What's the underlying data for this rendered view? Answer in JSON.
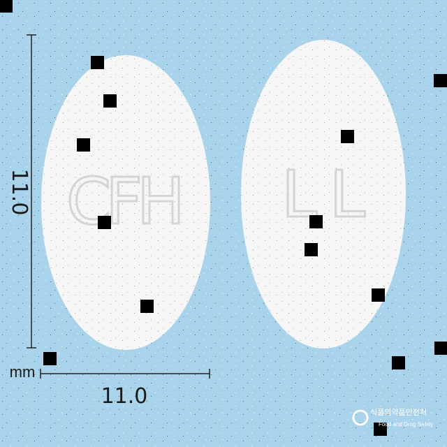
{
  "dimensions": {
    "height": "11.0",
    "width": "11.0",
    "unit": "mm"
  },
  "imprints": {
    "front": "CFH",
    "back": "LL"
  },
  "watermark": {
    "agency_korean": "식품의약품안전처",
    "agency_english": "Food and Drug Safety"
  }
}
